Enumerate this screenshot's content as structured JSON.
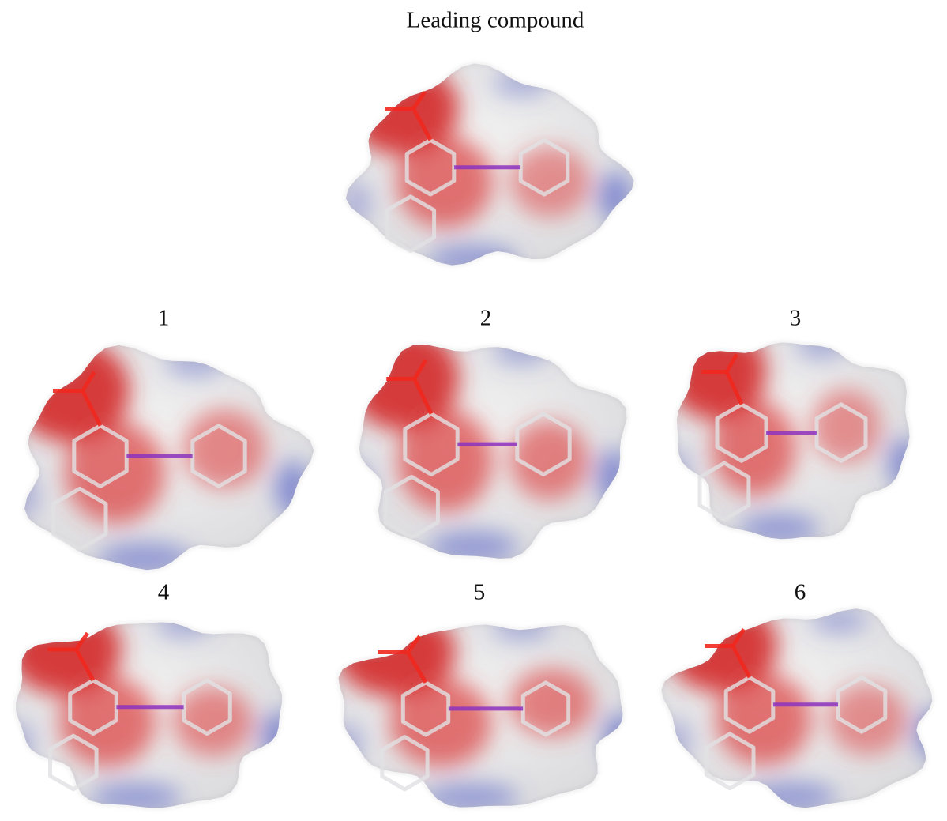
{
  "title": "Leading compound",
  "molecules": [
    {
      "label": "1"
    },
    {
      "label": "2"
    },
    {
      "label": "3"
    },
    {
      "label": "4"
    },
    {
      "label": "5"
    },
    {
      "label": "6"
    }
  ]
}
